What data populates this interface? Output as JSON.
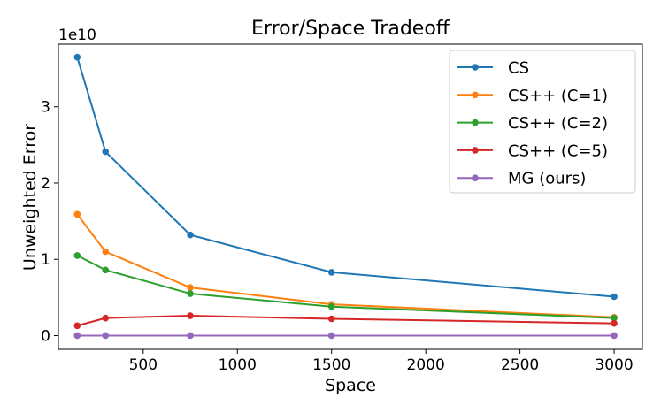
{
  "chart_data": {
    "type": "line",
    "title": "Error/Space Tradeoff",
    "xlabel": "Space",
    "ylabel": "Unweighted Error",
    "y_offset_label": "1e10",
    "x": [
      150,
      300,
      750,
      1500,
      3000
    ],
    "xlim": [
      50,
      3150
    ],
    "ylim": [
      -0.18,
      3.82
    ],
    "y_units": "1e10",
    "xticks": [
      500,
      1000,
      1500,
      2000,
      2500,
      3000
    ],
    "yticks": [
      0,
      1,
      2,
      3
    ],
    "grid": false,
    "legend_position": "top-right",
    "series": [
      {
        "name": "CS",
        "color": "#1f77b4",
        "values": [
          3.65,
          2.41,
          1.32,
          0.83,
          0.51
        ]
      },
      {
        "name": "CS++ (C=1)",
        "color": "#ff7f0e",
        "values": [
          1.59,
          1.1,
          0.63,
          0.41,
          0.24
        ]
      },
      {
        "name": "CS++ (C=2)",
        "color": "#2ca02c",
        "values": [
          1.05,
          0.86,
          0.55,
          0.38,
          0.23
        ]
      },
      {
        "name": "CS++ (C=5)",
        "color": "#d62728",
        "values": [
          0.13,
          0.23,
          0.26,
          0.22,
          0.16
        ]
      },
      {
        "name": "MG (ours)",
        "color": "#9467bd",
        "values": [
          0.0,
          0.0,
          0.0,
          0.0,
          0.0
        ]
      }
    ]
  }
}
